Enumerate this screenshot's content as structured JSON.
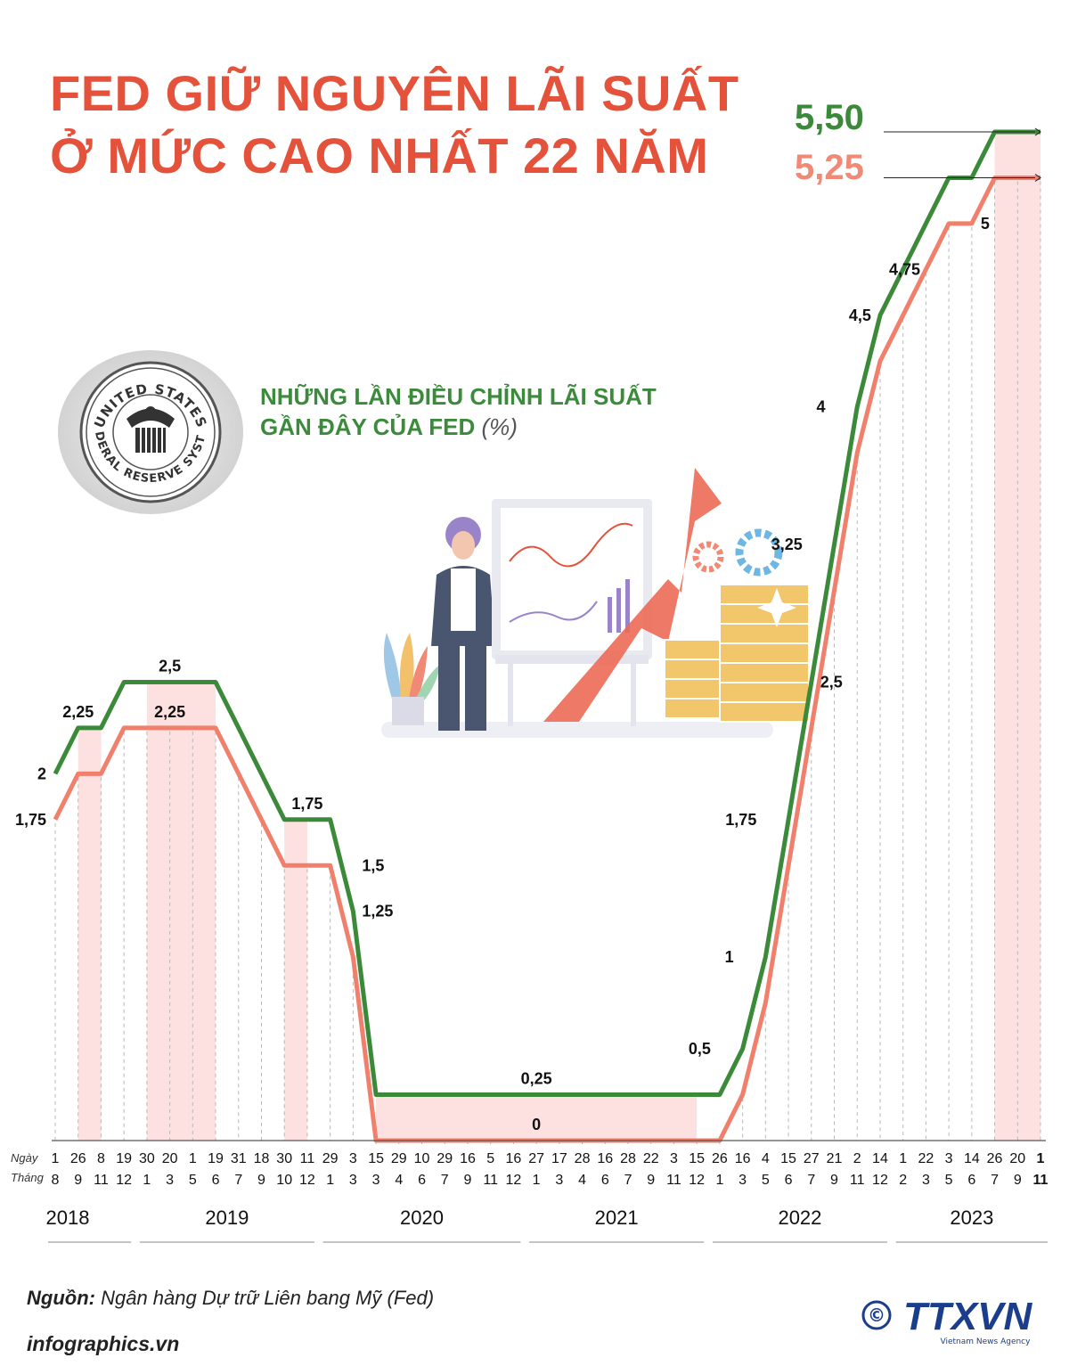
{
  "title_lines": [
    "FED GIỮ NGUYÊN LÃI SUẤT",
    "Ở MỨC CAO NHẤT 22 NĂM"
  ],
  "subtitle": {
    "line1": "NHỮNG LẦN ĐIỀU CHỈNH LÃI SUẤT",
    "line2": "GẦN ĐÂY CỦA FED",
    "unit": "(%)"
  },
  "current": {
    "upper": "5,50",
    "lower": "5,25"
  },
  "source": {
    "label": "Nguồn:",
    "text": "Ngân hàng Dự trữ Liên bang Mỹ (Fed)"
  },
  "website": "infographics.vn",
  "seal": {
    "text_top": "UNITED STATES",
    "text_bottom": "FEDERAL RESERVE SYSTEM"
  },
  "logo": {
    "text": "TTXVN",
    "sub": "Vietnam News Agency",
    "copyright": "©"
  },
  "colors": {
    "upper": "#3a8a39",
    "lower": "#f0806b",
    "band": "#fde0e0",
    "title": "#e4523b"
  },
  "chart_data": {
    "type": "line",
    "axis_labels": {
      "day": "Ngày",
      "month": "Tháng"
    },
    "days": [
      "1",
      "26",
      "8",
      "19",
      "30",
      "20",
      "1",
      "19",
      "31",
      "18",
      "30",
      "11",
      "29",
      "3",
      "15",
      "29",
      "10",
      "29",
      "16",
      "5",
      "16",
      "27",
      "17",
      "28",
      "16",
      "28",
      "22",
      "3",
      "15",
      "26",
      "16",
      "4",
      "15",
      "27",
      "21",
      "2",
      "14",
      "1",
      "22",
      "3",
      "14",
      "26",
      "20",
      "1"
    ],
    "months": [
      "8",
      "9",
      "11",
      "12",
      "1",
      "3",
      "5",
      "6",
      "7",
      "9",
      "10",
      "12",
      "1",
      "3",
      "3",
      "4",
      "6",
      "7",
      "9",
      "11",
      "12",
      "1",
      "3",
      "4",
      "6",
      "7",
      "9",
      "11",
      "12",
      "1",
      "3",
      "5",
      "6",
      "7",
      "9",
      "11",
      "12",
      "2",
      "3",
      "5",
      "6",
      "7",
      "9",
      "11"
    ],
    "years": [
      {
        "label": "2018",
        "start": 0,
        "end": 3
      },
      {
        "label": "2019",
        "start": 4,
        "end": 11
      },
      {
        "label": "2020",
        "start": 12,
        "end": 20
      },
      {
        "label": "2021",
        "start": 21,
        "end": 28
      },
      {
        "label": "2022",
        "start": 29,
        "end": 36
      },
      {
        "label": "2023",
        "start": 37,
        "end": 43
      }
    ],
    "series": [
      {
        "role": "upper",
        "values": [
          2,
          2.25,
          2.25,
          2.5,
          2.5,
          2.5,
          2.5,
          2.5,
          2.25,
          2,
          1.75,
          1.75,
          1.75,
          1.25,
          0.25,
          0.25,
          0.25,
          0.25,
          0.25,
          0.25,
          0.25,
          0.25,
          0.25,
          0.25,
          0.25,
          0.25,
          0.25,
          0.25,
          0.25,
          0.25,
          0.5,
          1,
          1.75,
          2.5,
          3.25,
          4,
          4.5,
          4.75,
          5,
          5.25,
          5.25,
          5.5,
          5.5,
          5.5
        ]
      },
      {
        "role": "lower",
        "values": [
          1.75,
          2,
          2,
          2.25,
          2.25,
          2.25,
          2.25,
          2.25,
          2,
          1.75,
          1.5,
          1.5,
          1.5,
          1,
          0,
          0,
          0,
          0,
          0,
          0,
          0,
          0,
          0,
          0,
          0,
          0,
          0,
          0,
          0,
          0,
          0.25,
          0.75,
          1.5,
          2.25,
          3,
          3.75,
          4.25,
          4.5,
          4.75,
          5,
          5,
          5.25,
          5.25,
          5.25
        ]
      }
    ],
    "data_labels": [
      {
        "text": "1,75",
        "index": 0,
        "value": 1.75,
        "side": "left"
      },
      {
        "text": "2",
        "index": 0,
        "value": 2,
        "side": "left"
      },
      {
        "text": "2,25",
        "index": 1,
        "value": 2.25,
        "side": "above"
      },
      {
        "text": "2,5",
        "index": 5,
        "value": 2.5,
        "side": "above"
      },
      {
        "text": "2,25",
        "index": 5,
        "value": 2.25,
        "side": "above"
      },
      {
        "text": "1,75",
        "index": 11,
        "value": 1.75,
        "side": "above"
      },
      {
        "text": "1,5",
        "index": 13,
        "value": 1.5,
        "side": "right"
      },
      {
        "text": "1,25",
        "index": 13,
        "value": 1.25,
        "side": "right"
      },
      {
        "text": "0,25",
        "index": 21,
        "value": 0.25,
        "side": "above"
      },
      {
        "text": "0",
        "index": 21,
        "value": 0,
        "side": "above"
      },
      {
        "text": "0,5",
        "index": 29,
        "value": 0.5,
        "side": "left"
      },
      {
        "text": "1",
        "index": 30,
        "value": 1,
        "side": "left"
      },
      {
        "text": "1,75",
        "index": 31,
        "value": 1.75,
        "side": "left"
      },
      {
        "text": "2,5",
        "index": 33,
        "value": 2.5,
        "side": "right"
      },
      {
        "text": "3,25",
        "index": 33,
        "value": 3.25,
        "side": "left"
      },
      {
        "text": "4",
        "index": 34,
        "value": 4,
        "side": "left"
      },
      {
        "text": "4,5",
        "index": 36,
        "value": 4.5,
        "side": "left"
      },
      {
        "text": "4,75",
        "index": 36,
        "value": 4.75,
        "side": "right"
      },
      {
        "text": "5",
        "index": 40,
        "value": 5,
        "side": "right"
      }
    ],
    "highlight_bands": [
      [
        1,
        2
      ],
      [
        4,
        7
      ],
      [
        10,
        11
      ],
      [
        14,
        28
      ],
      [
        41,
        43
      ]
    ],
    "ylim": [
      0,
      5.5
    ],
    "grid": "vertical-dashed",
    "legend": "none"
  }
}
